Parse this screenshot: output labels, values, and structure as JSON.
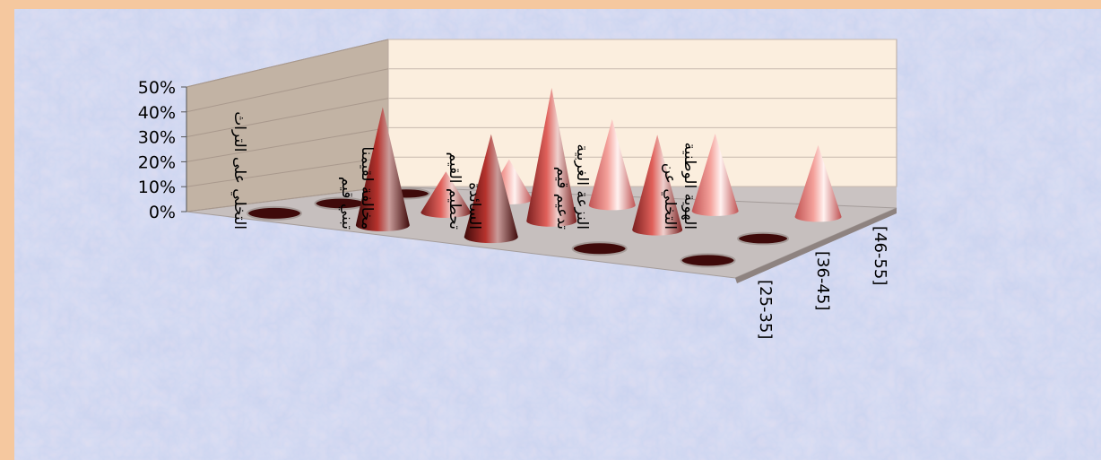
{
  "chart_data": {
    "type": "bar",
    "subtype": "3d-cone",
    "title": "",
    "xlabel": "",
    "ylabel": "",
    "ylim": [
      0,
      0.5
    ],
    "yticks": [
      "0%",
      "10%",
      "20%",
      "30%",
      "40%",
      "50%"
    ],
    "categories": [
      "التخلي على التراث",
      "تبني قيم مخالفة لقيمنا",
      "تحطيم القيم السائدة",
      "تدعيم قيم النزعة الغربية",
      "التخلي عن الهوية الوطنية"
    ],
    "series": [
      {
        "name": "[25-35]",
        "values": [
          0,
          0.46,
          0.4,
          0.0,
          0.0
        ]
      },
      {
        "name": "[36-45]",
        "values": [
          0,
          0.15,
          0.49,
          0.35,
          0.0
        ]
      },
      {
        "name": "[46-55]",
        "values": [
          0,
          0.14,
          0.3,
          0.27,
          0.25
        ]
      }
    ],
    "colors": {
      "frame_border": "#f5c89f",
      "floor": "#c9c1bf",
      "back_wall": "#fbeede",
      "side_wall": "#c7b8aa",
      "series_dark": [
        "#3f0a0a",
        "#7a1f1f",
        "#c05454"
      ],
      "series_mid": [
        "#b6322d",
        "#e0605a",
        "#f4a19b"
      ],
      "series_light": [
        "#c99c9a",
        "#efd0cd",
        "#fff2f0"
      ]
    }
  }
}
